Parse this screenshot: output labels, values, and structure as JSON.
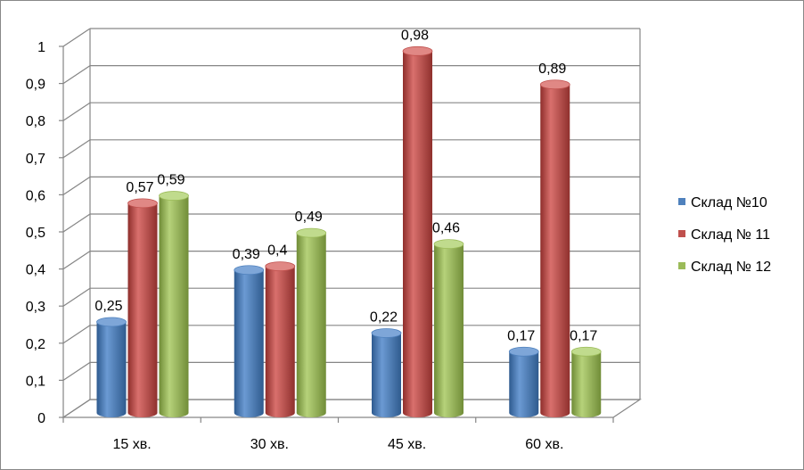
{
  "chart_data": {
    "type": "bar",
    "categories": [
      "15 хв.",
      "30 хв.",
      "45 хв.",
      "60 хв."
    ],
    "series": [
      {
        "name": "Склад №10",
        "values": [
          0.25,
          0.39,
          0.22,
          0.17
        ],
        "labels": [
          "0,25",
          "0,39",
          "0,22",
          "0,17"
        ]
      },
      {
        "name": "Склад № 11",
        "values": [
          0.57,
          0.4,
          0.98,
          0.89
        ],
        "labels": [
          "0,57",
          "0,4",
          "0,98",
          "0,89"
        ]
      },
      {
        "name": "Склад № 12",
        "values": [
          0.59,
          0.49,
          0.46,
          0.17
        ],
        "labels": [
          "0,59",
          "0,49",
          "0,46",
          "0,17"
        ]
      }
    ],
    "y_ticks": [
      "0",
      "0,1",
      "0,2",
      "0,3",
      "0,4",
      "0,5",
      "0,6",
      "0,7",
      "0,8",
      "0,9",
      "1"
    ],
    "ylim": [
      0,
      1
    ],
    "grid": true,
    "legend_position": "right",
    "style": "3d-cylinder",
    "colors": [
      "#4f81bd",
      "#c0504d",
      "#9bbb59"
    ]
  }
}
